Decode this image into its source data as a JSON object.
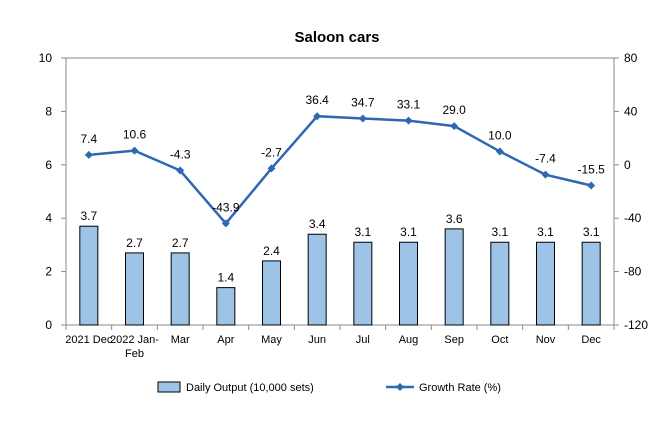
{
  "chart_data": {
    "type": "bar+line",
    "title": "Saloon cars",
    "categories": [
      [
        "2021 Dec"
      ],
      [
        "2022 Jan-",
        "Feb"
      ],
      [
        "Mar"
      ],
      [
        "Apr"
      ],
      [
        "May"
      ],
      [
        "Jun"
      ],
      [
        "Jul"
      ],
      [
        "Aug"
      ],
      [
        "Sep"
      ],
      [
        "Oct"
      ],
      [
        "Nov"
      ],
      [
        "Dec"
      ]
    ],
    "series": [
      {
        "name": "Daily Output (10,000 sets)",
        "type": "bar",
        "axis": "left",
        "color": "#9dc3e6",
        "stroke": "#000000",
        "values": [
          3.7,
          2.7,
          2.7,
          1.4,
          2.4,
          3.4,
          3.1,
          3.1,
          3.6,
          3.1,
          3.1,
          3.1
        ],
        "labels": [
          "3.7",
          "2.7",
          "2.7",
          "1.4",
          "2.4",
          "3.4",
          "3.1",
          "3.1",
          "3.6",
          "3.1",
          "3.1",
          "3.1"
        ]
      },
      {
        "name": "Growth Rate (%)",
        "type": "line",
        "axis": "right",
        "color": "#2e67b2",
        "values": [
          7.4,
          10.6,
          -4.3,
          -43.9,
          -2.7,
          36.4,
          34.7,
          33.1,
          29.0,
          10.0,
          -7.4,
          -15.5
        ],
        "labels": [
          "7.4",
          "10.6",
          "-4.3",
          "-43.9",
          "-2.7",
          "36.4",
          "34.7",
          "33.1",
          "29.0",
          "10.0",
          "-7.4",
          "-15.5"
        ]
      }
    ],
    "y_left": {
      "min": 0,
      "max": 10,
      "ticks": [
        "0",
        "2",
        "4",
        "6",
        "8",
        "10"
      ]
    },
    "y_right": {
      "min": -120,
      "max": 80,
      "ticks": [
        "-120",
        "-80",
        "-40",
        "0",
        "40",
        "80"
      ]
    },
    "grid": false,
    "legend_position": "bottom"
  }
}
